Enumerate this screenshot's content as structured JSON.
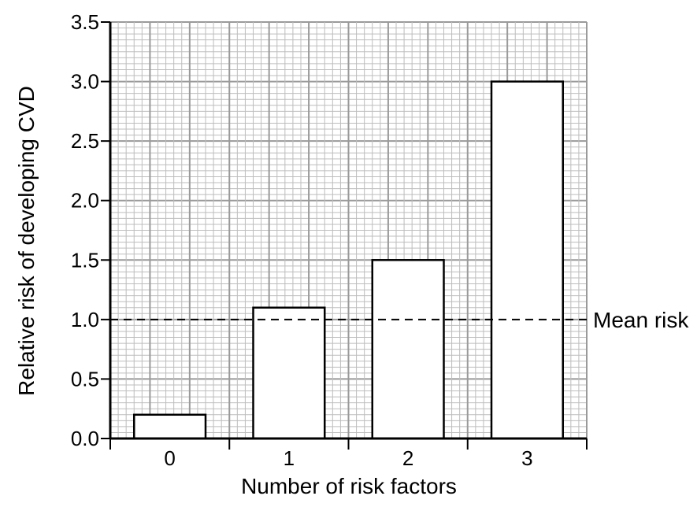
{
  "chart_data": {
    "type": "bar",
    "title": "",
    "xlabel": "Number of risk factors",
    "ylabel": "Relative risk of developing CVD",
    "categories": [
      "0",
      "1",
      "2",
      "3"
    ],
    "values": [
      0.2,
      1.1,
      1.5,
      3.0
    ],
    "ylim": [
      0,
      3.5
    ],
    "yticks": [
      "0.0",
      "0.5",
      "1.0",
      "1.5",
      "2.0",
      "2.5",
      "3.0",
      "3.5"
    ],
    "grid": true,
    "reference_line": {
      "value": 1.0,
      "label": "Mean risk",
      "style": "dashed"
    },
    "colors": {
      "bar_fill": "#ffffff",
      "bar_stroke": "#000000",
      "grid_minor": "#bdbdbd",
      "grid_major": "#9a9a9a",
      "axis": "#000000"
    }
  }
}
